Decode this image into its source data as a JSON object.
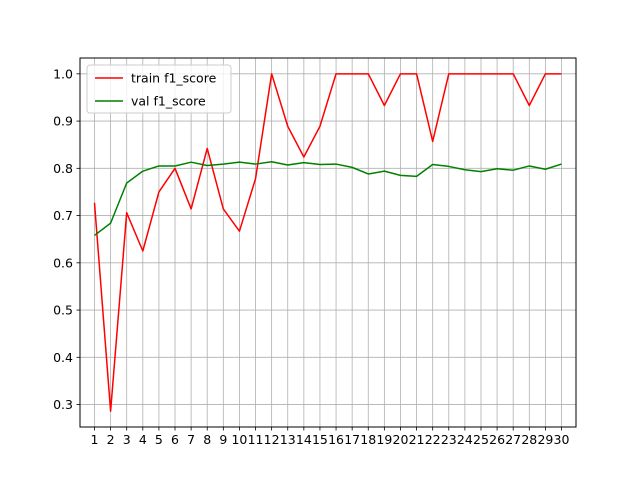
{
  "chart_data": {
    "type": "line",
    "title": "",
    "xlabel": "",
    "ylabel": "",
    "x": [
      1,
      2,
      3,
      4,
      5,
      6,
      7,
      8,
      9,
      10,
      11,
      12,
      13,
      14,
      15,
      16,
      17,
      18,
      19,
      20,
      21,
      22,
      23,
      24,
      25,
      26,
      27,
      28,
      29,
      30
    ],
    "xlim": [
      0.1,
      30.9
    ],
    "ylim": [
      0.2525,
      1.0335
    ],
    "yticks": [
      0.3,
      0.4,
      0.5,
      0.6,
      0.7,
      0.8,
      0.9,
      1.0
    ],
    "ytick_labels": [
      "0.3",
      "0.4",
      "0.5",
      "0.6",
      "0.7",
      "0.8",
      "0.9",
      "1.0"
    ],
    "grid": true,
    "legend_position": "top-left",
    "series": [
      {
        "name": "train f1_score",
        "color": "#ff0000",
        "values": [
          0.727,
          0.286,
          0.706,
          0.625,
          0.75,
          0.8,
          0.714,
          0.842,
          0.714,
          0.667,
          0.778,
          1.0,
          0.889,
          0.824,
          0.889,
          1.0,
          1.0,
          1.0,
          0.933,
          1.0,
          1.0,
          0.857,
          1.0,
          1.0,
          1.0,
          1.0,
          1.0,
          0.933,
          1.0,
          1.0
        ]
      },
      {
        "name": "val f1_score",
        "color": "#008000",
        "values": [
          0.658,
          0.684,
          0.769,
          0.794,
          0.805,
          0.805,
          0.813,
          0.806,
          0.809,
          0.813,
          0.809,
          0.814,
          0.807,
          0.812,
          0.808,
          0.809,
          0.802,
          0.788,
          0.794,
          0.785,
          0.783,
          0.808,
          0.804,
          0.797,
          0.793,
          0.799,
          0.796,
          0.805,
          0.798,
          0.809
        ]
      }
    ]
  }
}
